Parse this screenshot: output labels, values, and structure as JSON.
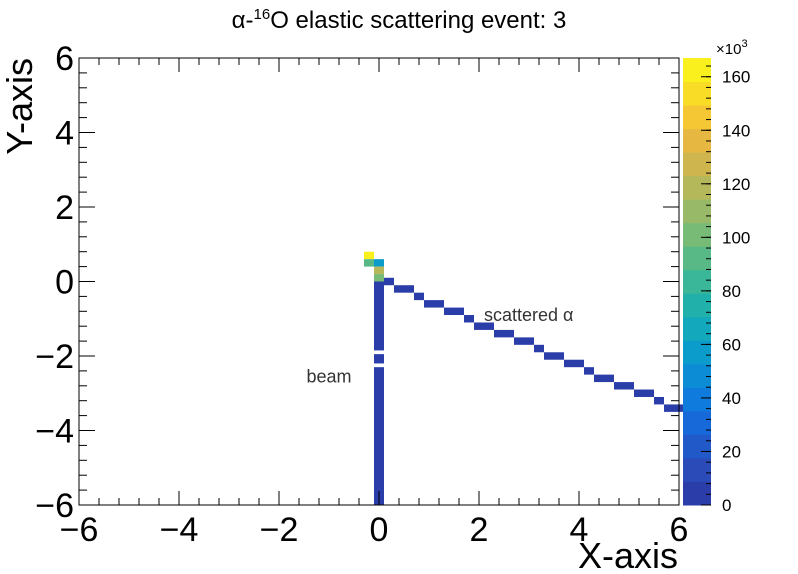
{
  "chart_data": {
    "type": "heatmap",
    "title": {
      "prefix": "α-",
      "superscript": "16",
      "suffix": "O elastic scattering event: 3"
    },
    "xlabel": "X-axis",
    "ylabel": "Y-axis",
    "xlim": [
      -6,
      6
    ],
    "ylim": [
      -6,
      6
    ],
    "x_ticks": [
      -6,
      -4,
      -2,
      0,
      2,
      4,
      6
    ],
    "y_ticks": [
      -6,
      -4,
      -2,
      0,
      2,
      4,
      6
    ],
    "tick_labels": {
      "x": [
        "−6",
        "−4",
        "−2",
        "0",
        "2",
        "4",
        "6"
      ],
      "y": [
        "−6",
        "−4",
        "−2",
        "0",
        "2",
        "4",
        "6"
      ]
    },
    "colorbar": {
      "exponent": "×10",
      "exponent_power": "3",
      "range": [
        0,
        167
      ],
      "ticks": [
        0,
        20,
        40,
        60,
        80,
        100,
        120,
        140,
        160
      ],
      "tick_labels": [
        "0",
        "20",
        "40",
        "60",
        "80",
        "100",
        "120",
        "140",
        "160"
      ],
      "colors": [
        "#2a3da8",
        "#2a4bb8",
        "#2259c9",
        "#1768d8",
        "#0f7bdc",
        "#0b8cd5",
        "#0b9ccb",
        "#13a8bc",
        "#22b0aa",
        "#3ab698",
        "#58b987",
        "#78bb76",
        "#98b967",
        "#b4b85a",
        "#cfb54d",
        "#e6b841",
        "#f6c734",
        "#f9dc26",
        "#f9f01e"
      ]
    },
    "annotations": [
      {
        "text": "scattered α",
        "x": 2.1,
        "y": -0.85
      },
      {
        "text": "beam",
        "x": -1.45,
        "y": -2.5
      }
    ],
    "bins": {
      "beam_column": {
        "x": [
          -0.1,
          0.1
        ],
        "y": [
          -6,
          0
        ],
        "gaps": [
          [
            -2.3,
            -2.2
          ],
          [
            -1.95,
            -1.85
          ]
        ],
        "value": 0
      },
      "track": {
        "x0": 0.1,
        "y0": 0.0,
        "x1": 6.0,
        "y1": -3.45,
        "thickness": 0.2,
        "value": 0
      },
      "vertex_cells": [
        {
          "x": [
            -0.3,
            -0.1
          ],
          "y": [
            0.6,
            0.8
          ],
          "value": 165
        },
        {
          "x": [
            -0.3,
            -0.1
          ],
          "y": [
            0.4,
            0.6
          ],
          "value": 95
        },
        {
          "x": [
            -0.1,
            0.1
          ],
          "y": [
            0.4,
            0.6
          ],
          "value": 55
        },
        {
          "x": [
            -0.1,
            0.1
          ],
          "y": [
            0.2,
            0.4
          ],
          "value": 115
        },
        {
          "x": [
            -0.1,
            0.1
          ],
          "y": [
            0.0,
            0.2
          ],
          "value": 100
        }
      ]
    }
  }
}
